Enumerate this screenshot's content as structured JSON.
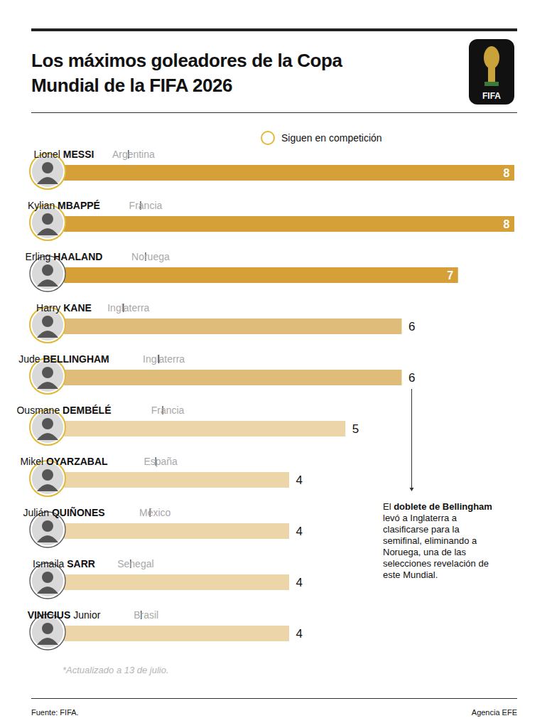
{
  "chart_data": {
    "type": "bar",
    "orientation": "horizontal",
    "title": "Los máximos goleadores de la Copa Mundial de la FIFA 2026",
    "logo_text": "FIFA",
    "categories": [
      "Lionel MESSI",
      "Kylian MBAPPÉ",
      "Erling HAALAND",
      "Harry KANE",
      "Jude BELLINGHAM",
      "Ousmane DEMBÉLÉ",
      "Mikel OYARZABAL",
      "Julián QUIÑONES",
      "Ismaila SARR",
      "VINICIUS Junior"
    ],
    "countries": [
      "Argentina",
      "Francia",
      "Noruega",
      "Inglaterra",
      "Inglaterra",
      "Francia",
      "España",
      "México",
      "Senegal",
      "Brasil"
    ],
    "values": [
      8,
      8,
      7,
      6,
      6,
      5,
      4,
      4,
      4,
      4
    ],
    "colors": [
      "#D4A037",
      "#D4A037",
      "#D4A037",
      "#DFBC7A",
      "#DFBC7A",
      "#ECD5A8",
      "#ECD5A8",
      "#ECD5A8",
      "#ECD5A8",
      "#ECD5A8"
    ],
    "in_competition": [
      true,
      true,
      false,
      true,
      true,
      true,
      true,
      false,
      false,
      false
    ],
    "legend_label": "Siguen en competición",
    "legend": "top",
    "xlim": [
      0,
      8
    ],
    "tick_labels": false,
    "data_labels": true,
    "annotation": {
      "text": "El doblete de Bellingham levó a Inglaterra a clasificarse para la semifinal, eliminando a Noruega, una de las selecciones revelación de este Mundial.",
      "bold": "doblete de Bellingham",
      "target": "Jude BELLINGHAM"
    },
    "note": "*Actualizado a 13 de julio.",
    "source": "Fuente: FIFA.",
    "credit": "Agencia EFE"
  }
}
